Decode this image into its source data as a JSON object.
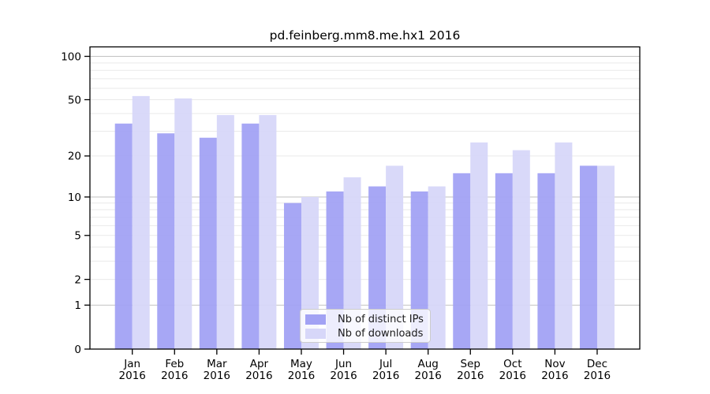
{
  "title": "pd.feinberg.mm8.me.hx1 2016",
  "chart_data": {
    "type": "bar",
    "title": "pd.feinberg.mm8.me.hx1 2016",
    "categories": [
      "Jan",
      "Feb",
      "Mar",
      "Apr",
      "May",
      "Jun",
      "Jul",
      "Aug",
      "Sep",
      "Oct",
      "Nov",
      "Dec"
    ],
    "x_year_label": "2016",
    "series": [
      {
        "name": "Nb of distinct IPs",
        "color": "#a2a2f4",
        "values": [
          34,
          29,
          27,
          34,
          9,
          11,
          12,
          11,
          15,
          15,
          15,
          17
        ]
      },
      {
        "name": "Nb of downloads",
        "color": "#d7d7f9",
        "values": [
          53,
          51,
          39,
          39,
          10,
          14,
          17,
          12,
          25,
          22,
          25,
          17
        ]
      }
    ],
    "xlabel": "",
    "ylabel": "",
    "yscale": "log(value+1)",
    "ylim": [
      0,
      120
    ],
    "yticks": [
      0,
      1,
      2,
      5,
      10,
      20,
      50,
      100
    ],
    "grid": true,
    "gridlines_major": [
      1,
      10,
      100
    ],
    "gridlines_minor": [
      2,
      3,
      4,
      5,
      6,
      7,
      8,
      9,
      20,
      30,
      40,
      50,
      60,
      70,
      80,
      90
    ],
    "legend": {
      "position": "lower center",
      "entries": [
        "Nb of distinct IPs",
        "Nb of downloads"
      ]
    }
  },
  "colors": {
    "bar_distinct_ips": "#a2a2f4",
    "bar_downloads": "#d7d7f9",
    "grid_major": "#c2c2c2",
    "grid_minor": "#e9e9e9",
    "spine": "#000000",
    "text": "#000000",
    "legend_border": "#cccccc"
  }
}
